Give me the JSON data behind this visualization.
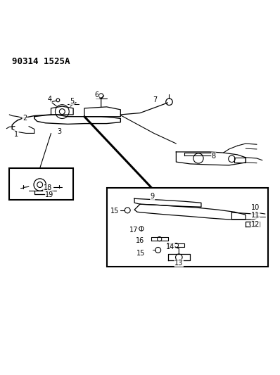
{
  "title": "90314 1525A",
  "background_color": "#ffffff",
  "line_color": "#000000",
  "fig_width": 3.98,
  "fig_height": 5.33,
  "dpi": 100
}
